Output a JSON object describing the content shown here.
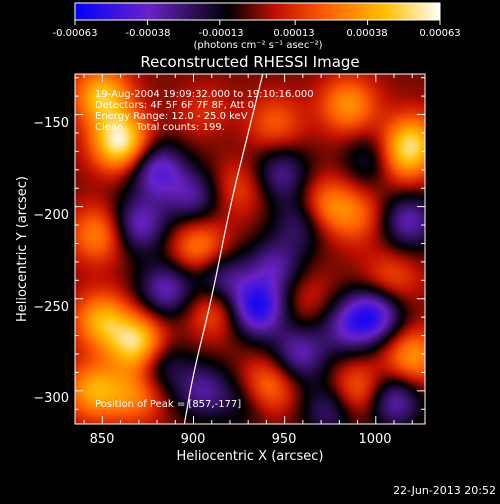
{
  "figure": {
    "colorbar_ticks": [
      "-0.00063",
      "-0.00038",
      "-0.00013",
      "0.00013",
      "0.00038",
      "0.00063"
    ],
    "colorbar_units": "(photons cm⁻² s⁻¹ asec⁻²)",
    "title": "Reconstructed RHESSI Image",
    "info_lines": [
      "19-Aug-2004 19:09:32.000 to 19:10:16.000",
      "Detectors: 4F 5F 6F 7F 8F, Att 0",
      "Energy Range: 12.0 - 25.0 keV",
      "Clean    Total counts: 199."
    ],
    "position_label": "Position of Peak = [857,-177]",
    "xlabel": "Heliocentric X (arcsec)",
    "ylabel": "Heliocentric Y (arcsec)",
    "footer_date": "22-Jun-2013 20:52"
  },
  "chart_data": {
    "type": "heatmap",
    "title": "Reconstructed RHESSI Image",
    "xlabel": "Heliocentric X (arcsec)",
    "ylabel": "Heliocentric Y (arcsec)",
    "xlim": [
      835,
      1027
    ],
    "ylim": [
      -318,
      -128
    ],
    "xticks": [
      850,
      900,
      950,
      1000
    ],
    "yticks": [
      -150,
      -200,
      -250,
      -300
    ],
    "colorbar": {
      "min": -0.00063,
      "max": 0.00063,
      "ticks": [
        -0.00063,
        -0.00038,
        -0.00013,
        0.00013,
        0.00038,
        0.00063
      ],
      "colors": [
        "#0000ff",
        "#6a22c8",
        "#000000",
        "#c01000",
        "#ff5a00",
        "#ffc000",
        "#ffffff"
      ]
    },
    "peak": {
      "x": 857,
      "y": -177
    },
    "blobs": [
      {
        "x": 860,
        "y": -165,
        "v": 0.0006
      },
      {
        "x": 850,
        "y": -140,
        "v": 0.00045
      },
      {
        "x": 908,
        "y": -152,
        "v": 0.00028
      },
      {
        "x": 848,
        "y": -215,
        "v": 0.00032
      },
      {
        "x": 870,
        "y": -275,
        "v": 0.00058
      },
      {
        "x": 850,
        "y": -262,
        "v": 0.0004
      },
      {
        "x": 845,
        "y": -300,
        "v": 0.00038
      },
      {
        "x": 868,
        "y": -302,
        "v": 0.0003
      },
      {
        "x": 903,
        "y": -222,
        "v": 0.00032
      },
      {
        "x": 912,
        "y": -255,
        "v": 0.00028
      },
      {
        "x": 925,
        "y": -190,
        "v": 0.00018
      },
      {
        "x": 945,
        "y": -155,
        "v": 0.00022
      },
      {
        "x": 940,
        "y": -298,
        "v": 0.00035
      },
      {
        "x": 985,
        "y": -145,
        "v": 0.00034
      },
      {
        "x": 972,
        "y": -200,
        "v": 0.00032
      },
      {
        "x": 990,
        "y": -205,
        "v": 0.00022
      },
      {
        "x": 1020,
        "y": -165,
        "v": 0.0004
      },
      {
        "x": 1012,
        "y": -175,
        "v": 0.0003
      },
      {
        "x": 1008,
        "y": -240,
        "v": 0.00022
      },
      {
        "x": 990,
        "y": -300,
        "v": 0.0003
      },
      {
        "x": 1020,
        "y": -282,
        "v": 0.00036
      },
      {
        "x": 962,
        "y": -250,
        "v": 0.00012
      },
      {
        "x": 880,
        "y": -180,
        "v": -0.00042
      },
      {
        "x": 870,
        "y": -210,
        "v": -0.00038
      },
      {
        "x": 900,
        "y": -195,
        "v": -0.0003
      },
      {
        "x": 885,
        "y": -245,
        "v": -0.00036
      },
      {
        "x": 915,
        "y": -240,
        "v": -0.00034
      },
      {
        "x": 935,
        "y": -255,
        "v": -0.00055
      },
      {
        "x": 945,
        "y": -232,
        "v": -0.0003
      },
      {
        "x": 958,
        "y": -280,
        "v": -0.00035
      },
      {
        "x": 948,
        "y": -182,
        "v": -0.0003
      },
      {
        "x": 960,
        "y": -208,
        "v": -0.00028
      },
      {
        "x": 880,
        "y": -285,
        "v": -0.0003
      },
      {
        "x": 905,
        "y": -300,
        "v": -0.0003
      },
      {
        "x": 910,
        "y": -155,
        "v": -0.00018
      },
      {
        "x": 1000,
        "y": -175,
        "v": -0.00028
      },
      {
        "x": 1000,
        "y": -258,
        "v": -0.00045
      },
      {
        "x": 985,
        "y": -265,
        "v": -0.00032
      },
      {
        "x": 1018,
        "y": -208,
        "v": -0.00035
      },
      {
        "x": 1010,
        "y": -305,
        "v": -0.00038
      },
      {
        "x": 975,
        "y": -310,
        "v": -0.00028
      },
      {
        "x": 930,
        "y": -305,
        "v": -0.0002
      }
    ],
    "limb_curve": {
      "points": [
        [
          938,
          -128
        ],
        [
          930,
          -160
        ],
        [
          920,
          -200
        ],
        [
          910,
          -250
        ],
        [
          900,
          -290
        ],
        [
          895,
          -318
        ]
      ]
    }
  }
}
